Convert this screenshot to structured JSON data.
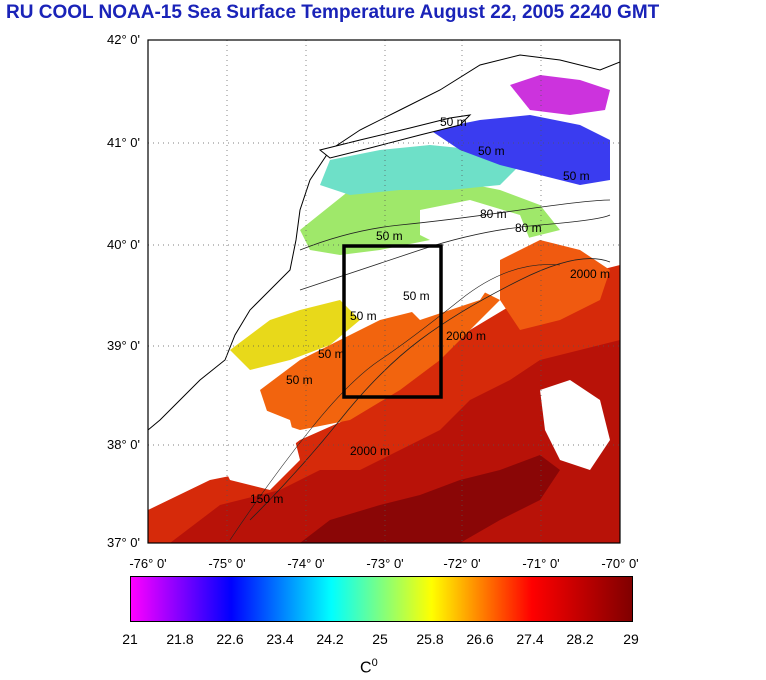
{
  "title": "RU COOL  NOAA-15 Sea Surface Temperature August 22, 2005 2240 GMT",
  "map": {
    "lat_labels": [
      "42° 0'",
      "41° 0'",
      "40° 0'",
      "39° 0'",
      "38° 0'",
      "37° 0'"
    ],
    "lon_labels": [
      "-76° 0'",
      "-75° 0'",
      "-74° 0'",
      "-73° 0'",
      "-72° 0'",
      "-71° 0'",
      "-70° 0'"
    ],
    "lat_range": [
      37,
      42
    ],
    "lon_range": [
      -76,
      -70
    ],
    "grid": "dotted",
    "contour_labels": [
      "50 m",
      "50 m",
      "50 m",
      "80 m",
      "80 m",
      "50 m",
      "50 m",
      "2000 m",
      "2000 m",
      "2000 m",
      "50 m",
      "50 m",
      "50 m",
      "150 m"
    ],
    "study_box": {
      "lon": [
        -73.42,
        -72.45
      ],
      "lat": [
        38.48,
        40.0
      ]
    }
  },
  "colorbar": {
    "tick_labels": [
      "21",
      "21.8",
      "22.6",
      "23.4",
      "24.2",
      "25",
      "25.8",
      "26.6",
      "27.4",
      "28.2",
      "29"
    ],
    "min": 21,
    "max": 29,
    "units_base": "C",
    "units_sup": "0",
    "colors": [
      "#ff00ff",
      "#0000ff",
      "#00ffff",
      "#ffff00",
      "#ff0000",
      "#800000"
    ]
  }
}
